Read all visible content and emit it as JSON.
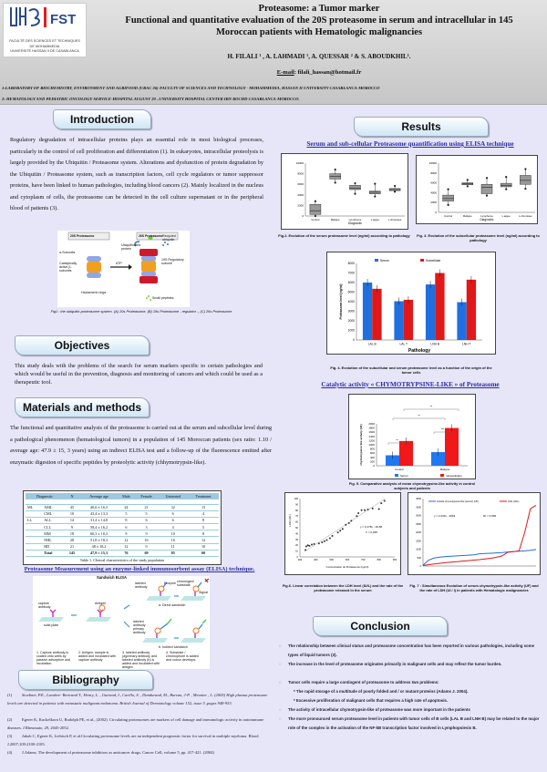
{
  "header": {
    "logo": {
      "brand": "FST",
      "line1": "FACULTÉ DES SCIENCES ET TECHNIQUES",
      "line2": "DE MOHAMMEDIA",
      "line3": "UNIVERSITÉ HASSAN II DE CASABLANCA"
    },
    "title1": "Proteasome: a Tumor marker",
    "title2": "Functional and quantitative evaluation of the 20S proteasome in serum and intracellular in 145",
    "title3": "Moroccan patients with Hematologic malignancies",
    "authors": "H. FILALI ¹ ,  A. LAHMADI ¹, A. QUESSAR ² & S. ABOUDKHIL¹.",
    "email_label": "E-mail",
    "email": ": filali_hassan@hotmail.fr",
    "affil1": "1:LABORATORY OF BIOCHEMISTRY, ENVIRONMENT AND AGRIFOOD (URAC 36)-FACULTY OF SCIENCES AND TECHNOLOGY - MOHAMMEDIA, HASSAN II UNIVERSITY CASABLANCA-MOROCCO",
    "affil2": "2: HEMATOLOGY AND PEDIATRIC ONCOLOGY SERVICE-HOSPITAL AUGUST 20 –UNIVERSITY HOSPITAL CENTER IBN ROCHD CASABLANCA-MOROCCO."
  },
  "intro": {
    "heading": "Introduction",
    "text": "Regulatory degradation of intracellular proteins plays an essential role in most biological processes, particularly in the control of cell proliferation and differentiation (1). In eukaryotes, intracellular proteolysis is largely provided by the Ubiquitin / Proteasome system. Alterations and dysfunction of protein degradation by the Ubiquitin / Proteasome system, such as transcription factors, cell cycle regulators or tumor suppressor proteins, have been linked to human pathologies, including blood cancers (2). Mainly localized in the nucleus and cytoplasm of cells, the proteasome can be detected in the cell culture supernatant or in the peripheral blood of patients (3).",
    "fig1": {
      "label_20s": "20S Proteasome",
      "label_26s": "26S Proteasome",
      "alpha": "α-Subunits",
      "beta": "Catalytically active β-subunits",
      "rings": "Heptameric rings",
      "atp": "ATP",
      "ub_protein": "Ubiquitinated protein",
      "recycled": "Recycled ubiquitin",
      "reg": "19S Regulatory subunit",
      "peptides": "Small peptides",
      "caption": "Fig1 : the ubiquitin-proteasome system. (A) 20s Proteasome, (B) 19s Proteasome - regulator -, (C) 26s Proteasome"
    }
  },
  "objectives": {
    "heading": "Objectives",
    "text": "This study deals with the problems of the search for serum markers specific to certain pathologies and which would be useful in the prevention, diagnosis and monitoring of cancers and which could be used as a therapeutic tool."
  },
  "methods": {
    "heading": "Materials and methods",
    "text": "The functional and quantitative analysis of the proteasome is carried out at the serum and subcellular level during a pathological phenomenon (hematological tumors) in a population of 145 Moroccan patients (sex ratio: 1.10 / average age: 47.9 ± 15, 3 years) using an indirect ELISA test and a follow-up of the fluorescence emitted after enzymatic digestion of specific peptides by proteolytic activity (chhymotrypsin-like).",
    "table": {
      "headers": [
        "Diagnostic",
        "N",
        "Average age",
        "Male",
        "Female",
        "Untreated",
        "Treatment"
      ],
      "rows": [
        [
          "ML",
          "AML",
          "45",
          "40,6 ± 16,3",
          "24",
          "21",
          "32",
          "13"
        ],
        [
          "",
          "CML",
          "10",
          "43,4 ± 13,3",
          "5",
          "5",
          "6",
          "4"
        ],
        [
          "LL",
          "ALL",
          "14",
          "31,4 ± 14,8",
          "8",
          "6",
          "6",
          "8"
        ],
        [
          "",
          "CLL",
          "9",
          "58,4 ± 16,2",
          "6",
          "3",
          "4",
          "5"
        ],
        [
          "",
          "MM",
          "18",
          "60,3 ± 10,3",
          "9",
          "9",
          "10",
          "8"
        ],
        [
          "",
          "NHL",
          "28",
          "51,8 ± 18,3",
          "12",
          "16",
          "16",
          "12"
        ],
        [
          "",
          "HD",
          "21",
          "48  ± 18,2",
          "12",
          "9",
          "11",
          "10"
        ],
        [
          "",
          "Total",
          "145",
          "47,9 ± 15,3",
          "76",
          "69",
          "85",
          "60"
        ]
      ],
      "caption": "Table 1. Clinical characteristics of the study population"
    },
    "elisa_title": "Proteasome  Measurement using an enzyme-linked immunosorbent assay (ELISA) technique.",
    "elisa": {
      "title": "Sandwich  ELISA",
      "capture": "capture antibody",
      "plate": "solid plate",
      "antigen": "Antigen",
      "labeled": "labeled antibody",
      "enzyme": "Enzyme",
      "chromogen": "chromogen/ substrate",
      "signal": "Signal",
      "direct": "a. Direct sandwich",
      "primary": "labeled antibody primary antibody",
      "indirect": "b. Indirect sandwich",
      "step1": "1. Capture antibody is coated onto wells by passive adsorption and incubation.",
      "step2": "2. Antigen: sample is added and incubated with capture antibody",
      "step3": "3. labeled antibody (a)primary antibody and labeled antibody (b) is added and incubated with antigen",
      "step4": "4. Substrate / chromophore is added and colour develops."
    }
  },
  "bibliography": {
    "heading": "Bibliography",
    "refs": [
      {
        "n": "(1)",
        "text": "Stoebner, P.E., Lavabre- Bertrand T., Henry, L. ,  Guiraud, I., Carillo, S. , Dandurand, M., Bureau, J-P. , Meunier , L. (2005) High plasma proteasome levels are detected in patients      with metastatic malignant melanoma. British Journal of Dermatology volume 152, issue 5 ,pages 948-953."
      },
      {
        "n": "(2)",
        "text": "Egerer K, Kuckelkorn U, Rudolph PE, et al., (2002). Circulating proteasomes are markers of cell damage and immunologic activity in autoimmune diseases. J Rheumato, 29, 2045-2052."
      },
      {
        "n": "(3)",
        "text": "Jakob C, Egerer K, Liebisch P, et al.Circulating proteasome levels are an independent prognostic factor for survival in multiple myeloma. Blood J.2007;109:2100-2105."
      },
      {
        "n": "(4)",
        "text": "J.Adams. The development of proteasome inhibitors as anticancer drugs. Cancer Cell, volume  5, pp. 417-421. (2004)"
      }
    ]
  },
  "results": {
    "heading": "Results",
    "sub1": "Serum and sub-cellular Proteasome quantification using ELISA technique",
    "sub2": "Catalytic activity « CHYMOTRYPSINE-LIKE » of Proteasome"
  },
  "conclusion": {
    "heading": "Conclusion",
    "items": [
      {
        "bullet": true,
        "text": "The relationship between clinical status and proteasome concentration has been reported in various pathologies, including some types of liquid tumors (3)."
      },
      {
        "bullet": true,
        "text": "The increase in the level of proteasome originates primarily in malignant cells and may reflect the tumor burden."
      },
      {
        "bullet": true,
        "text": "Tumor cells require a large contingent of proteasome to address two problems:"
      },
      {
        "bullet": false,
        "text": "* The rapid storage of a multitude of poorly folded and / or mutant proteins (Adams J. 2004)."
      },
      {
        "bullet": false,
        "text": "* Excessive proliferation of malignant cells that requires a high rate of apoptosis."
      },
      {
        "bullet": true,
        "text": " The activity of intracellular chymotrypsin-like of proteasome was more important in the patients"
      },
      {
        "bullet": true,
        "text": "The more pronounced serum proteasome level in patients with tumor cells of B cells (LAL B and LNH B) may be related to the major role of the complex in the activation of the NF-kB transcription factor involved in Lymphopoiesis B."
      }
    ]
  },
  "chart_data": [
    {
      "id": "fig2",
      "type": "box",
      "caption": "Fig.2. Evolution of the serum proteasome level (ng/ml) according to pathology",
      "categories": [
        "Control",
        "Maligne",
        "Lymphome",
        "L.aigue",
        "L.chronique"
      ],
      "xlabel": "Diagnostic",
      "ylim": [
        0,
        10000
      ],
      "yticks": [
        0,
        2000,
        4000,
        6000,
        8000,
        10000
      ],
      "boxes": [
        [
          0,
          300,
          1000,
          2200,
          2800
        ],
        [
          6300,
          7000,
          7500,
          8000,
          8800
        ],
        [
          4200,
          5000,
          5300,
          5800,
          6200
        ],
        [
          3700,
          4200,
          4500,
          4700,
          6100
        ],
        [
          4600,
          4800,
          5000,
          5200,
          5700
        ]
      ]
    },
    {
      "id": "fig3",
      "type": "box",
      "caption": "Fig. 3. Evolution of the subcellular  proteasome level (ng/ml) according to pathology",
      "categories": [
        "Control",
        "Maligne",
        "Lymphome",
        "L.aigue",
        "L.chronique"
      ],
      "xlabel": "Diagnostic",
      "ylim": [
        0,
        10000
      ],
      "yticks": [
        0,
        2000,
        4000,
        6000,
        8000,
        10000
      ],
      "boxes": [
        [
          1500,
          2300,
          2800,
          3500,
          4700
        ],
        [
          5300,
          5600,
          5800,
          6000,
          6600
        ],
        [
          3400,
          3800,
          5100,
          5700,
          7000
        ],
        [
          4700,
          5200,
          5500,
          5900,
          7200
        ],
        [
          4800,
          5700,
          6500,
          7500,
          8800
        ]
      ]
    },
    {
      "id": "fig4",
      "type": "bar",
      "caption": "Fig. 4. Evolution of the subcellular and serum proteasome level as a function of the origin of the tumor cells",
      "categories": [
        "LAL B",
        "LAL T",
        "LNH B",
        "LNH T"
      ],
      "xlabel": "Pathology",
      "ylabel": "Proteasome level  (ng/ml)",
      "ylim": [
        0,
        8000
      ],
      "yticks": [
        0,
        1000,
        2000,
        3000,
        4000,
        5000,
        6000,
        7000,
        8000
      ],
      "series": [
        {
          "name": "Serum",
          "color": "#1f6fe0",
          "values": [
            6000,
            4050,
            5800,
            3950
          ]
        },
        {
          "name": "Subcellular",
          "color": "#e01818",
          "values": [
            5350,
            4200,
            7000,
            6300
          ]
        }
      ]
    },
    {
      "id": "fig5",
      "type": "bar",
      "caption": "Fig. 5. Comparative analysis of mean chymotrypsine-like activity in control subjects and patients",
      "categories": [
        "Control",
        "Maligne"
      ],
      "ylabel": "chymotrypsine like activity (UF)",
      "ylim": [
        0,
        2000
      ],
      "yticks": [
        0,
        200,
        400,
        600,
        800,
        1000,
        1200,
        1400,
        1600,
        1800,
        2000
      ],
      "series": [
        {
          "name": "Sérum",
          "color": "#1f78f0",
          "values": [
            500,
            650
          ]
        },
        {
          "name": "Intracellulaire",
          "color": "#f01818",
          "values": [
            1180,
            1800
          ]
        }
      ],
      "annotations": [
        "**",
        "***",
        "**",
        "**"
      ]
    },
    {
      "id": "fig6",
      "type": "scatter",
      "caption": "Fig.6. Linear correlation between the LDH level (IU/L) and the rate of the proteasome released in the serum",
      "xlabel": "Concentration du Protéasome (ng/ml)",
      "ylabel": "LDH (UI/L)",
      "xlim": [
        300,
        900
      ],
      "ylim": [
        0,
        100
      ],
      "xticks": [
        300,
        400,
        500,
        600,
        700,
        800,
        900
      ],
      "yticks": [
        0,
        10,
        20,
        30,
        40,
        50,
        60,
        70,
        80,
        90,
        100
      ],
      "equation": "y = 0,178x - 49,58",
      "r2": "r² = 0,935",
      "points": [
        [
          335,
          12
        ],
        [
          340,
          18
        ],
        [
          350,
          20
        ],
        [
          360,
          19
        ],
        [
          375,
          21
        ],
        [
          390,
          22
        ],
        [
          420,
          23
        ],
        [
          440,
          25
        ],
        [
          455,
          27
        ],
        [
          470,
          29
        ],
        [
          490,
          32
        ],
        [
          505,
          36
        ],
        [
          540,
          42
        ],
        [
          555,
          45
        ],
        [
          570,
          48
        ],
        [
          590,
          55
        ],
        [
          610,
          58
        ],
        [
          625,
          62
        ],
        [
          660,
          70
        ],
        [
          670,
          75
        ],
        [
          690,
          80
        ],
        [
          710,
          80
        ],
        [
          730,
          81
        ],
        [
          760,
          83
        ],
        [
          800,
          82
        ],
        [
          815,
          92
        ],
        [
          835,
          96
        ]
      ]
    },
    {
      "id": "fig7",
      "type": "line",
      "caption": "Fig. 7 : Simultaneous Evolution of serum chymotrypsin-like activity (UF) and the rate of LDH (UI / l) in patients with Hematologic malignancies",
      "ylim": [
        0,
        4000
      ],
      "yticks": [
        0,
        500,
        1000,
        1500,
        2000,
        2500,
        3000,
        3500,
        4000
      ],
      "equation": "y = 2,233x - 3063",
      "r2": "R² = 0,699",
      "series": [
        {
          "name": "Activité chymotrypsine like (serum) (UF)",
          "color": "#1f6fe0",
          "values": [
            50,
            350,
            480,
            530,
            560,
            580,
            600,
            620,
            640,
            660,
            720,
            740,
            760,
            780,
            800,
            830,
            860,
            880,
            900,
            930,
            980
          ]
        },
        {
          "name": "LDH (UI/L)",
          "color": "#e01818",
          "values": [
            30,
            80,
            120,
            160,
            200,
            230,
            260,
            290,
            320,
            350,
            380,
            420,
            460,
            520,
            600,
            820,
            850,
            900,
            2000,
            3400,
            3600
          ]
        }
      ]
    }
  ]
}
